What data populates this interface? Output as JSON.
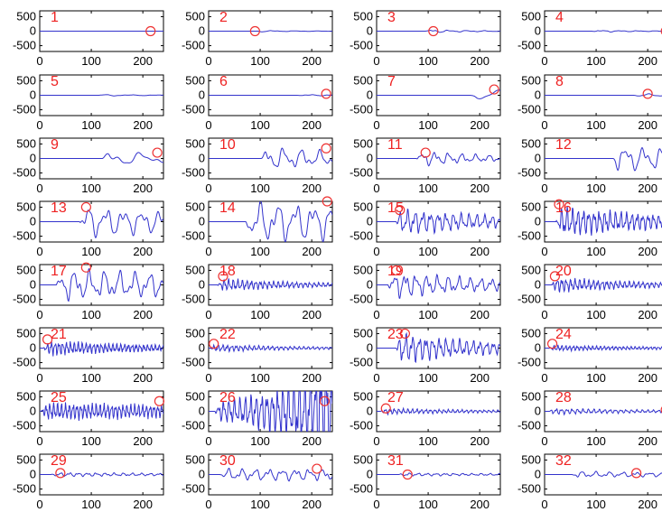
{
  "chart_data": {
    "type": "line",
    "layout_grid": {
      "rows": 8,
      "cols": 4
    },
    "xlim": [
      0,
      240
    ],
    "ylim": [
      -700,
      700
    ],
    "x_ticks": [
      0,
      100,
      200
    ],
    "y_ticks": [
      500,
      0,
      -500
    ],
    "grid": false,
    "line_color": "#3333cc",
    "marker_color": "#ee3333",
    "label_color": "#ee2222",
    "panels": [
      {
        "label": "1",
        "peak": 0,
        "onset": 100,
        "freq": 1.0,
        "decay": 1.0,
        "marker": [
          215,
          0
        ]
      },
      {
        "label": "2",
        "peak": 30,
        "onset": 100,
        "freq": 1.2,
        "decay": 1.0,
        "marker": [
          90,
          0
        ]
      },
      {
        "label": "3",
        "peak": 60,
        "onset": 100,
        "freq": 1.5,
        "decay": 0.8,
        "marker": [
          110,
          0
        ]
      },
      {
        "label": "4",
        "peak": 40,
        "onset": 100,
        "freq": 1.5,
        "decay": 0.8,
        "marker": [
          235,
          0
        ]
      },
      {
        "label": "5",
        "peak": 30,
        "onset": 120,
        "freq": 1.0,
        "decay": 0.7,
        "marker": null
      },
      {
        "label": "6",
        "peak": 30,
        "onset": 180,
        "freq": 1.2,
        "decay": 0.7,
        "marker": [
          228,
          50
        ]
      },
      {
        "label": "7",
        "peak": 230,
        "onset": 190,
        "freq": 0.6,
        "decay": 0.5,
        "marker": [
          228,
          200
        ]
      },
      {
        "label": "8",
        "peak": 60,
        "onset": 180,
        "freq": 1.0,
        "decay": 0.7,
        "marker": [
          200,
          50
        ]
      },
      {
        "label": "9",
        "peak": 300,
        "onset": 130,
        "freq": 0.8,
        "decay": 0.4,
        "marker": [
          228,
          200
        ]
      },
      {
        "label": "10",
        "peak": 450,
        "onset": 110,
        "freq": 1.5,
        "decay": 0.3,
        "marker": [
          228,
          350
        ]
      },
      {
        "label": "11",
        "peak": 300,
        "onset": 85,
        "freq": 2.0,
        "decay": 0.5,
        "marker": [
          95,
          200
        ]
      },
      {
        "label": "12",
        "peak": 500,
        "onset": 140,
        "freq": 1.5,
        "decay": 0.2,
        "marker": null
      },
      {
        "label": "13",
        "peak": 600,
        "onset": 85,
        "freq": 1.5,
        "decay": 0.2,
        "marker": [
          90,
          500
        ]
      },
      {
        "label": "14",
        "peak": 800,
        "onset": 80,
        "freq": 1.5,
        "decay": 0.1,
        "marker": [
          230,
          700
        ]
      },
      {
        "label": "15",
        "peak": 500,
        "onset": 45,
        "freq": 3.5,
        "decay": 0.3,
        "marker": [
          45,
          400
        ]
      },
      {
        "label": "16",
        "peak": 600,
        "onset": 30,
        "freq": 5.0,
        "decay": 0.3,
        "marker": [
          28,
          600
        ]
      },
      {
        "label": "17",
        "peak": 600,
        "onset": 40,
        "freq": 1.8,
        "decay": 0.1,
        "marker": [
          90,
          600
        ]
      },
      {
        "label": "18",
        "peak": 250,
        "onset": 25,
        "freq": 6.0,
        "decay": 0.4,
        "marker": [
          28,
          300
        ]
      },
      {
        "label": "19",
        "peak": 500,
        "onset": 30,
        "freq": 2.5,
        "decay": 0.3,
        "marker": [
          38,
          500
        ]
      },
      {
        "label": "20",
        "peak": 300,
        "onset": 20,
        "freq": 6.0,
        "decay": 0.4,
        "marker": [
          20,
          300
        ]
      },
      {
        "label": "21",
        "peak": 300,
        "onset": 15,
        "freq": 7.0,
        "decay": 0.3,
        "marker": [
          15,
          300
        ]
      },
      {
        "label": "22",
        "peak": 150,
        "onset": 10,
        "freq": 6.0,
        "decay": 0.4,
        "marker": [
          10,
          150
        ]
      },
      {
        "label": "23",
        "peak": 600,
        "onset": 45,
        "freq": 4.0,
        "decay": 0.4,
        "marker": [
          55,
          500
        ]
      },
      {
        "label": "24",
        "peak": 120,
        "onset": 15,
        "freq": 7.0,
        "decay": 0.3,
        "marker": [
          15,
          150
        ]
      },
      {
        "label": "25",
        "peak": 350,
        "onset": 10,
        "freq": 7.0,
        "decay": 0.1,
        "marker": [
          232,
          350
        ]
      },
      {
        "label": "26",
        "peak": 400,
        "onset": 20,
        "freq": 5.0,
        "decay": -0.6,
        "marker": [
          225,
          350
        ]
      },
      {
        "label": "27",
        "peak": 120,
        "onset": 15,
        "freq": 6.0,
        "decay": 0.3,
        "marker": [
          18,
          100
        ]
      },
      {
        "label": "28",
        "peak": 120,
        "onset": 15,
        "freq": 5.0,
        "decay": 0.3,
        "marker": [
          235,
          50
        ]
      },
      {
        "label": "29",
        "peak": 80,
        "onset": 30,
        "freq": 3.0,
        "decay": 0.2,
        "marker": [
          40,
          50
        ]
      },
      {
        "label": "30",
        "peak": 220,
        "onset": 30,
        "freq": 2.0,
        "decay": 0.0,
        "marker": [
          210,
          200
        ]
      },
      {
        "label": "31",
        "peak": 60,
        "onset": 50,
        "freq": 3.0,
        "decay": 0.2,
        "marker": [
          60,
          0
        ]
      },
      {
        "label": "32",
        "peak": 120,
        "onset": 60,
        "freq": 2.0,
        "decay": 0.2,
        "marker": [
          178,
          50
        ]
      }
    ]
  }
}
